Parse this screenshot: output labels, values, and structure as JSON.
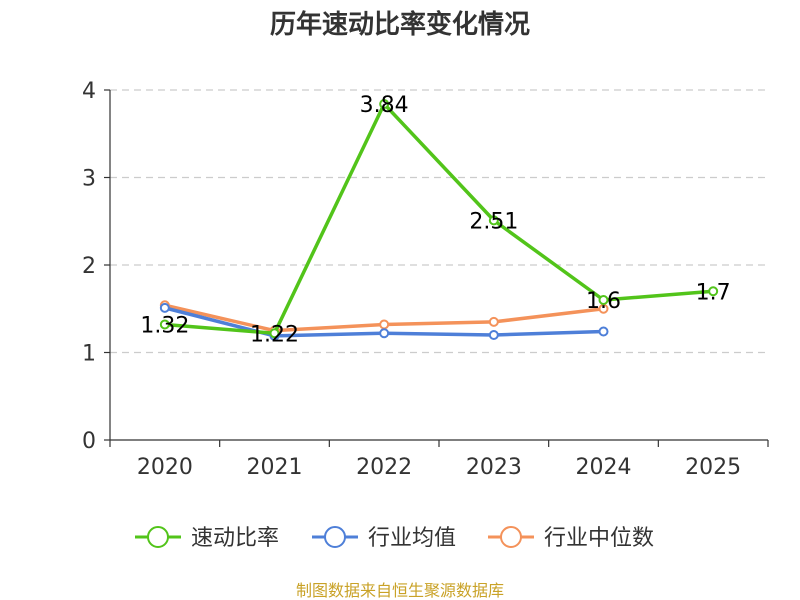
{
  "chart_data": {
    "type": "line",
    "title": "历年速动比率变化情况",
    "categories": [
      "2020",
      "2021",
      "2022",
      "2023",
      "2024",
      "2025"
    ],
    "y_ticks": [
      "0",
      "1",
      "2",
      "3",
      "4"
    ],
    "ylim": [
      0,
      4
    ],
    "grid": true,
    "legend_position": "bottom",
    "series": [
      {
        "name": "速动比率",
        "color": "#52c41a",
        "values": [
          1.32,
          1.22,
          3.84,
          2.51,
          1.6,
          1.7
        ],
        "labels": [
          "1.32",
          "1.22",
          "3.84",
          "2.51",
          "1.6",
          "1.7"
        ]
      },
      {
        "name": "行业均值",
        "color": "#4e7fd8",
        "values": [
          1.51,
          1.19,
          1.22,
          1.2,
          1.24,
          null
        ]
      },
      {
        "name": "行业中位数",
        "color": "#f4925a",
        "values": [
          1.54,
          1.25,
          1.32,
          1.35,
          1.5,
          null
        ]
      }
    ],
    "source": "制图数据来自恒生聚源数据库",
    "source_color": "#c9a227"
  }
}
